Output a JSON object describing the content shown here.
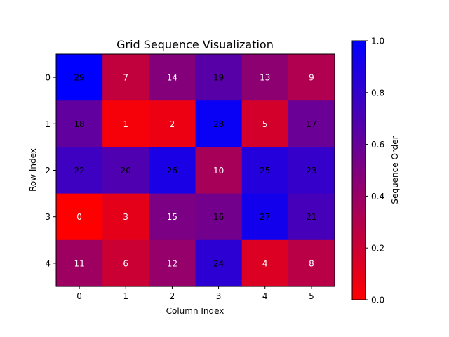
{
  "chart_data": {
    "type": "heatmap",
    "title": "Grid Sequence Visualization",
    "xlabel": "Column Index",
    "ylabel": "Row Index",
    "x_ticks": [
      "0",
      "1",
      "2",
      "3",
      "4",
      "5"
    ],
    "y_ticks": [
      "0",
      "1",
      "2",
      "3",
      "4"
    ],
    "values": [
      [
        29,
        7,
        14,
        19,
        13,
        9
      ],
      [
        18,
        1,
        2,
        28,
        5,
        17
      ],
      [
        22,
        20,
        26,
        10,
        25,
        23
      ],
      [
        0,
        3,
        15,
        16,
        27,
        21
      ],
      [
        11,
        6,
        12,
        24,
        4,
        8
      ]
    ],
    "color_min": 0,
    "color_max": 29,
    "colormap": {
      "low": "#ff0000",
      "high": "#0000ff"
    },
    "colorbar": {
      "label": "Sequence Order",
      "range": [
        0.0,
        1.0
      ],
      "ticks": [
        "0.0",
        "0.2",
        "0.4",
        "0.6",
        "0.8",
        "1.0"
      ]
    }
  }
}
